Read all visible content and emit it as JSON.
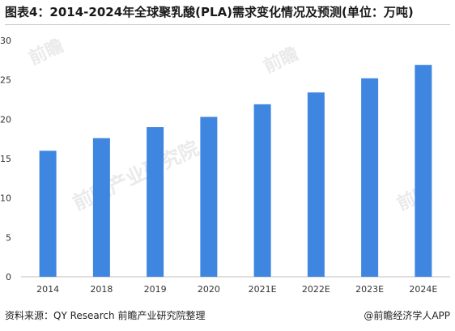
{
  "title": "图表4：2014-2024年全球聚乳酸(PLA)需求变化情况及预测(单位：万吨)",
  "source": "资料来源：QY Research 前瞻产业研究院整理",
  "brand": "@前瞻经济学人APP",
  "watermark": {
    "main": "前瞻产业研究院",
    "short": "前瞻"
  },
  "colors": {
    "bar": "#3f86e0",
    "axis": "#bfbfbf",
    "text": "#333333"
  },
  "chart_data": {
    "type": "bar",
    "categories": [
      "2014",
      "2018",
      "2019",
      "2020",
      "2021E",
      "2022E",
      "2023E",
      "2024E"
    ],
    "values": [
      16.0,
      17.6,
      19.0,
      20.3,
      21.9,
      23.4,
      25.2,
      26.9
    ],
    "title": "图表4：2014-2024年全球聚乳酸(PLA)需求变化情况及预测(单位：万吨)",
    "xlabel": "",
    "ylabel": "",
    "ylim": [
      0,
      30
    ],
    "yticks": [
      0,
      5,
      10,
      15,
      20,
      25,
      30
    ],
    "grid": false,
    "legend": "none"
  }
}
